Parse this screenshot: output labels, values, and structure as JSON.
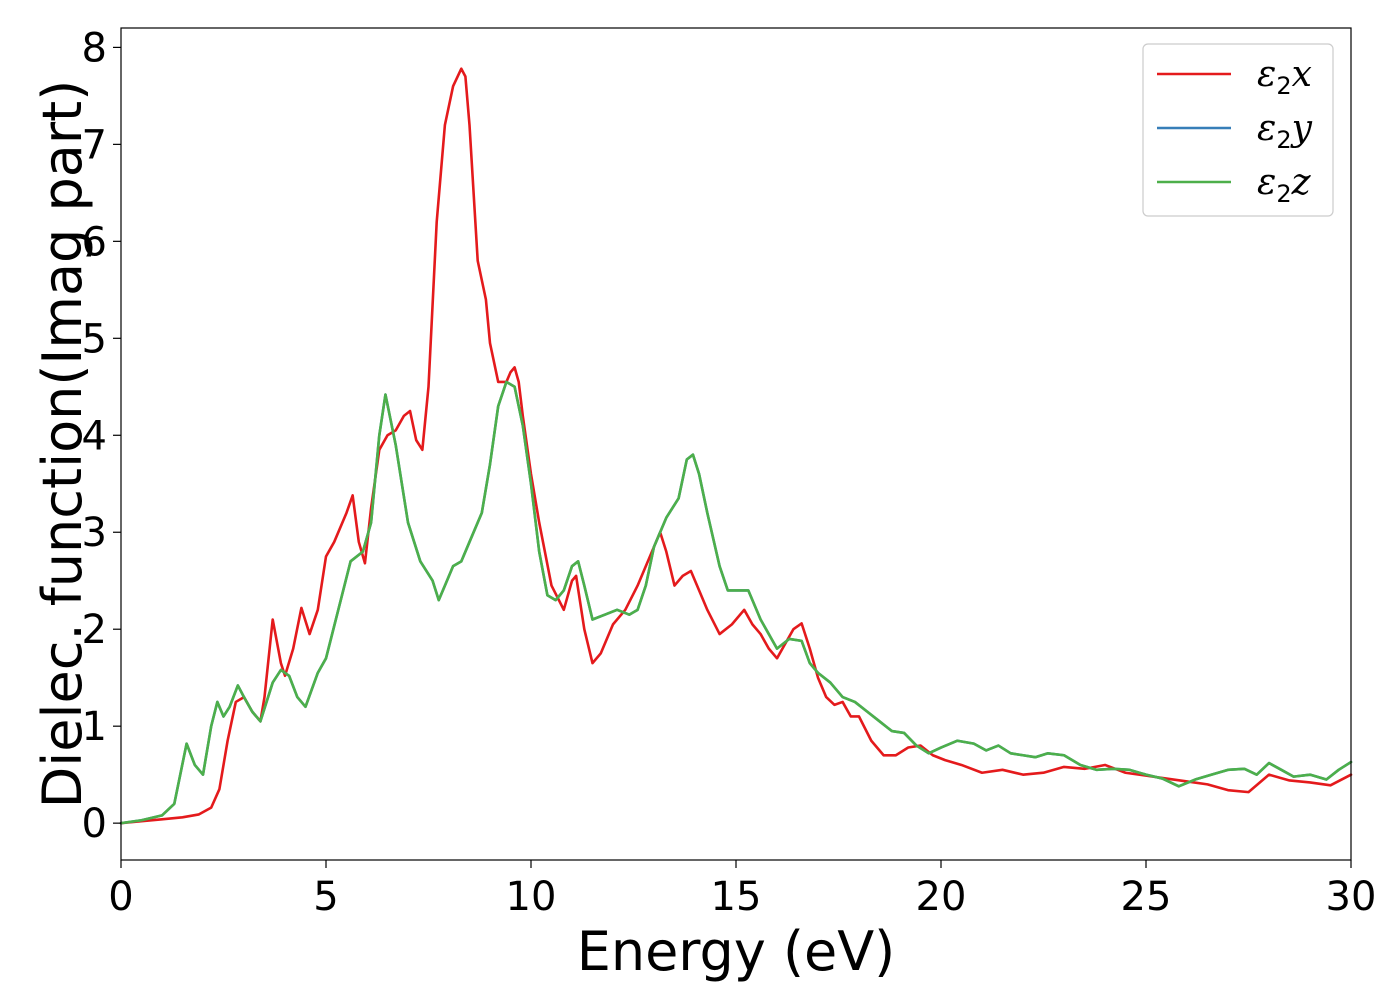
{
  "chart_data": {
    "type": "line",
    "title": "",
    "xlabel": "Energy (eV)",
    "ylabel": "Dielec. function(Imag part)",
    "xlim": [
      0,
      30
    ],
    "ylim": [
      -0.38,
      8.2
    ],
    "xticks": [
      0,
      5,
      10,
      15,
      20,
      25,
      30
    ],
    "yticks": [
      0,
      1,
      2,
      3,
      4,
      5,
      6,
      7,
      8
    ],
    "grid": false,
    "legend_position": "top-right",
    "series": [
      {
        "name": "ε2x",
        "legend_base": "ε",
        "legend_sub": "2",
        "legend_suffix": "x",
        "color": "#e41a1c",
        "x": [
          0,
          0.5,
          1.0,
          1.5,
          1.9,
          2.2,
          2.4,
          2.6,
          2.8,
          3.0,
          3.2,
          3.4,
          3.5,
          3.7,
          3.9,
          4.0,
          4.2,
          4.4,
          4.6,
          4.8,
          5.0,
          5.2,
          5.5,
          5.65,
          5.8,
          5.95,
          6.1,
          6.3,
          6.5,
          6.7,
          6.9,
          7.05,
          7.2,
          7.35,
          7.5,
          7.7,
          7.9,
          8.1,
          8.3,
          8.4,
          8.5,
          8.7,
          8.9,
          9.0,
          9.2,
          9.4,
          9.5,
          9.6,
          9.7,
          9.8,
          10.0,
          10.2,
          10.5,
          10.8,
          11.0,
          11.1,
          11.3,
          11.5,
          11.7,
          12.0,
          12.3,
          12.6,
          12.9,
          13.15,
          13.3,
          13.5,
          13.7,
          13.9,
          14.1,
          14.3,
          14.6,
          14.9,
          15.2,
          15.4,
          15.6,
          15.8,
          16.0,
          16.2,
          16.4,
          16.6,
          16.8,
          17.0,
          17.2,
          17.4,
          17.6,
          17.8,
          18.0,
          18.3,
          18.6,
          18.9,
          19.2,
          19.5,
          19.8,
          20.1,
          20.5,
          21.0,
          21.5,
          22.0,
          22.5,
          23.0,
          23.5,
          24.0,
          24.5,
          25.0,
          25.5,
          26.0,
          26.5,
          27.0,
          27.5,
          28.0,
          28.5,
          29.0,
          29.5,
          30.0
        ],
        "y": [
          0.0,
          0.02,
          0.04,
          0.06,
          0.09,
          0.16,
          0.35,
          0.85,
          1.25,
          1.3,
          1.15,
          1.05,
          1.3,
          2.1,
          1.65,
          1.52,
          1.8,
          2.22,
          1.95,
          2.2,
          2.75,
          2.9,
          3.2,
          3.38,
          2.9,
          2.68,
          3.25,
          3.85,
          4.0,
          4.05,
          4.2,
          4.25,
          3.95,
          3.85,
          4.5,
          6.2,
          7.2,
          7.6,
          7.78,
          7.7,
          7.2,
          5.8,
          5.4,
          4.95,
          4.55,
          4.55,
          4.65,
          4.7,
          4.55,
          4.2,
          3.6,
          3.1,
          2.45,
          2.2,
          2.5,
          2.55,
          2.0,
          1.65,
          1.75,
          2.05,
          2.2,
          2.45,
          2.75,
          3.0,
          2.8,
          2.45,
          2.55,
          2.6,
          2.4,
          2.2,
          1.95,
          2.05,
          2.2,
          2.05,
          1.95,
          1.8,
          1.7,
          1.85,
          2.0,
          2.06,
          1.8,
          1.5,
          1.3,
          1.22,
          1.25,
          1.1,
          1.1,
          0.85,
          0.7,
          0.7,
          0.78,
          0.8,
          0.7,
          0.65,
          0.6,
          0.52,
          0.55,
          0.5,
          0.52,
          0.58,
          0.56,
          0.6,
          0.52,
          0.49,
          0.46,
          0.43,
          0.4,
          0.34,
          0.32,
          0.5,
          0.44,
          0.42,
          0.39,
          0.5
        ]
      },
      {
        "name": "ε2y",
        "legend_base": "ε",
        "legend_sub": "2",
        "legend_suffix": "y",
        "color": "#377eb8",
        "x": [
          0,
          0.5,
          1.0,
          1.3,
          1.6,
          1.8,
          2.0,
          2.2,
          2.35,
          2.5,
          2.65,
          2.85,
          3.0,
          3.2,
          3.4,
          3.7,
          3.9,
          4.1,
          4.3,
          4.5,
          4.8,
          5.0,
          5.3,
          5.6,
          5.9,
          6.1,
          6.3,
          6.45,
          6.7,
          7.0,
          7.3,
          7.6,
          7.75,
          7.9,
          8.1,
          8.3,
          8.5,
          8.8,
          9.0,
          9.2,
          9.4,
          9.6,
          9.8,
          10.0,
          10.2,
          10.4,
          10.6,
          10.8,
          11.0,
          11.15,
          11.3,
          11.5,
          11.8,
          12.1,
          12.4,
          12.6,
          12.8,
          13.0,
          13.3,
          13.6,
          13.8,
          13.95,
          14.1,
          14.3,
          14.6,
          14.8,
          15.0,
          15.3,
          15.6,
          15.8,
          16.0,
          16.3,
          16.6,
          16.8,
          17.0,
          17.3,
          17.6,
          17.9,
          18.2,
          18.5,
          18.8,
          19.1,
          19.4,
          19.7,
          20.0,
          20.4,
          20.8,
          21.1,
          21.4,
          21.7,
          22.0,
          22.3,
          22.6,
          23.0,
          23.4,
          23.8,
          24.2,
          24.6,
          25.0,
          25.4,
          25.8,
          26.2,
          26.6,
          27.0,
          27.4,
          27.7,
          28.0,
          28.3,
          28.6,
          29.0,
          29.4,
          29.7,
          30.0
        ],
        "y": [
          0.0,
          0.03,
          0.08,
          0.2,
          0.82,
          0.6,
          0.5,
          1.0,
          1.25,
          1.1,
          1.2,
          1.42,
          1.3,
          1.15,
          1.05,
          1.45,
          1.58,
          1.52,
          1.3,
          1.2,
          1.55,
          1.7,
          2.2,
          2.7,
          2.8,
          3.1,
          4.0,
          4.42,
          3.9,
          3.1,
          2.7,
          2.5,
          2.3,
          2.45,
          2.65,
          2.7,
          2.9,
          3.2,
          3.7,
          4.3,
          4.55,
          4.5,
          4.1,
          3.5,
          2.8,
          2.35,
          2.3,
          2.4,
          2.65,
          2.7,
          2.45,
          2.1,
          2.15,
          2.2,
          2.15,
          2.2,
          2.45,
          2.85,
          3.15,
          3.35,
          3.75,
          3.8,
          3.6,
          3.2,
          2.65,
          2.4,
          2.4,
          2.4,
          2.1,
          1.95,
          1.8,
          1.9,
          1.88,
          1.65,
          1.55,
          1.45,
          1.3,
          1.25,
          1.15,
          1.05,
          0.95,
          0.93,
          0.8,
          0.72,
          0.78,
          0.85,
          0.82,
          0.75,
          0.8,
          0.72,
          0.7,
          0.68,
          0.72,
          0.7,
          0.6,
          0.55,
          0.56,
          0.55,
          0.5,
          0.46,
          0.38,
          0.45,
          0.5,
          0.55,
          0.56,
          0.5,
          0.62,
          0.55,
          0.48,
          0.5,
          0.45,
          0.55,
          0.63
        ]
      },
      {
        "name": "ε2z",
        "legend_base": "ε",
        "legend_sub": "2",
        "legend_suffix": "z",
        "color": "#4daf4a",
        "x": [
          0,
          0.5,
          1.0,
          1.3,
          1.6,
          1.8,
          2.0,
          2.2,
          2.35,
          2.5,
          2.65,
          2.85,
          3.0,
          3.2,
          3.4,
          3.7,
          3.9,
          4.1,
          4.3,
          4.5,
          4.8,
          5.0,
          5.3,
          5.6,
          5.9,
          6.1,
          6.3,
          6.45,
          6.7,
          7.0,
          7.3,
          7.6,
          7.75,
          7.9,
          8.1,
          8.3,
          8.5,
          8.8,
          9.0,
          9.2,
          9.4,
          9.6,
          9.8,
          10.0,
          10.2,
          10.4,
          10.6,
          10.8,
          11.0,
          11.15,
          11.3,
          11.5,
          11.8,
          12.1,
          12.4,
          12.6,
          12.8,
          13.0,
          13.3,
          13.6,
          13.8,
          13.95,
          14.1,
          14.3,
          14.6,
          14.8,
          15.0,
          15.3,
          15.6,
          15.8,
          16.0,
          16.3,
          16.6,
          16.8,
          17.0,
          17.3,
          17.6,
          17.9,
          18.2,
          18.5,
          18.8,
          19.1,
          19.4,
          19.7,
          20.0,
          20.4,
          20.8,
          21.1,
          21.4,
          21.7,
          22.0,
          22.3,
          22.6,
          23.0,
          23.4,
          23.8,
          24.2,
          24.6,
          25.0,
          25.4,
          25.8,
          26.2,
          26.6,
          27.0,
          27.4,
          27.7,
          28.0,
          28.3,
          28.6,
          29.0,
          29.4,
          29.7,
          30.0
        ],
        "y": [
          0.0,
          0.03,
          0.08,
          0.2,
          0.82,
          0.6,
          0.5,
          1.0,
          1.25,
          1.1,
          1.2,
          1.42,
          1.3,
          1.15,
          1.05,
          1.45,
          1.58,
          1.52,
          1.3,
          1.2,
          1.55,
          1.7,
          2.2,
          2.7,
          2.8,
          3.1,
          4.0,
          4.42,
          3.9,
          3.1,
          2.7,
          2.5,
          2.3,
          2.45,
          2.65,
          2.7,
          2.9,
          3.2,
          3.7,
          4.3,
          4.55,
          4.5,
          4.1,
          3.5,
          2.8,
          2.35,
          2.3,
          2.4,
          2.65,
          2.7,
          2.45,
          2.1,
          2.15,
          2.2,
          2.15,
          2.2,
          2.45,
          2.85,
          3.15,
          3.35,
          3.75,
          3.8,
          3.6,
          3.2,
          2.65,
          2.4,
          2.4,
          2.4,
          2.1,
          1.95,
          1.8,
          1.9,
          1.88,
          1.65,
          1.55,
          1.45,
          1.3,
          1.25,
          1.15,
          1.05,
          0.95,
          0.93,
          0.8,
          0.72,
          0.78,
          0.85,
          0.82,
          0.75,
          0.8,
          0.72,
          0.7,
          0.68,
          0.72,
          0.7,
          0.6,
          0.55,
          0.56,
          0.55,
          0.5,
          0.46,
          0.38,
          0.45,
          0.5,
          0.55,
          0.56,
          0.5,
          0.62,
          0.55,
          0.48,
          0.5,
          0.45,
          0.55,
          0.63
        ]
      }
    ]
  }
}
